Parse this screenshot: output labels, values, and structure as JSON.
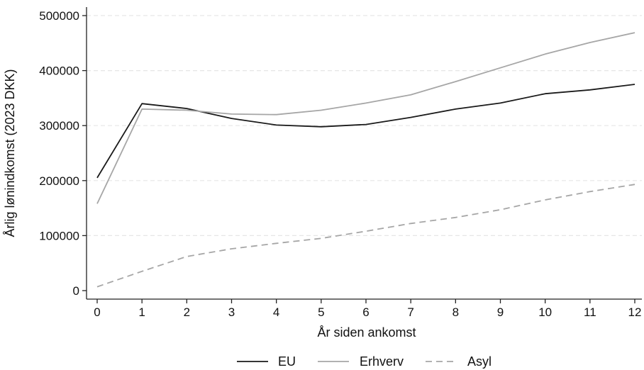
{
  "chart_data": {
    "type": "line",
    "xlabel": "År siden ankomst",
    "ylabel": "Årlig lønindkomst (2023 DKK)",
    "x": [
      0,
      1,
      2,
      3,
      4,
      5,
      6,
      7,
      8,
      9,
      10,
      11,
      12
    ],
    "x_ticks": [
      "0",
      "1",
      "2",
      "3",
      "4",
      "5",
      "6",
      "7",
      "8",
      "9",
      "10",
      "11",
      "12"
    ],
    "y_ticks": [
      "0",
      "100000",
      "200000",
      "300000",
      "400000",
      "500000"
    ],
    "y_tick_values": [
      0,
      100000,
      200000,
      300000,
      400000,
      500000
    ],
    "xlim": [
      0,
      12
    ],
    "ylim": [
      0,
      500000
    ],
    "grid": "horizontal dashed",
    "legend_position": "bottom",
    "series": [
      {
        "name": "EU",
        "color": "#1a1a1a",
        "style": "solid",
        "values": [
          205000,
          340000,
          331000,
          313000,
          301000,
          298000,
          302000,
          315000,
          330000,
          341000,
          358000,
          365000,
          375000
        ]
      },
      {
        "name": "Erhverv",
        "color": "#a6a6a6",
        "style": "solid",
        "values": [
          158000,
          330000,
          328000,
          321000,
          320000,
          328000,
          341000,
          356000,
          380000,
          405000,
          430000,
          451000,
          469000
        ]
      },
      {
        "name": "Asyl",
        "color": "#a6a6a6",
        "style": "dashed",
        "values": [
          7000,
          35000,
          62000,
          76000,
          86000,
          95000,
          108000,
          122000,
          133000,
          147000,
          165000,
          180000,
          193000
        ]
      }
    ]
  }
}
